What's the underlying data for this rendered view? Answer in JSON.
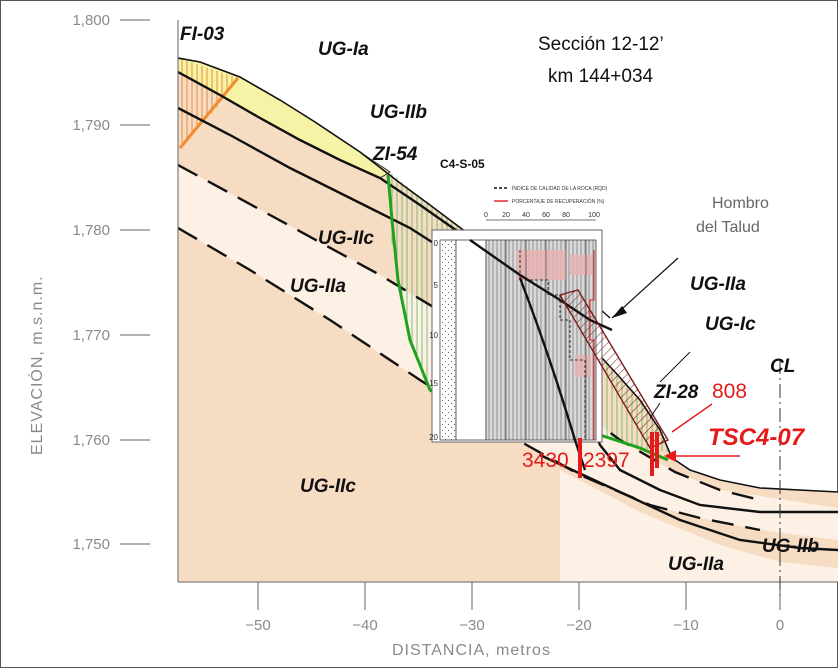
{
  "section": {
    "title": "Sección 12-12’",
    "km": "km 144+034"
  },
  "axes": {
    "ylabel": "ELEVACIÓN, m.s.n.m.",
    "xlabel": "DISTANCIA, metros",
    "yticks": [
      "1,800",
      "1,790",
      "1,780",
      "1,770",
      "1,760",
      "1,750"
    ],
    "xticks": [
      "−50",
      "−40",
      "−30",
      "−20",
      "−10",
      "0"
    ]
  },
  "units": {
    "fi03": "FI-03",
    "ug_ia": "UG-Ia",
    "ug_iib_top": "UG-IIb",
    "zi54": "ZI-54",
    "ug_iic_mid": "UG-IIc",
    "ug_iia_mid": "UG-IIa",
    "ug_iic_low": "UG-IIc",
    "ug_iia_right": "UG-IIa",
    "ug_ic": "UG-Ic",
    "zi28": "ZI-28",
    "ug_iia_bottom": "UG-IIa",
    "ug_iib_bottom": "UG-IIb"
  },
  "annotations": {
    "borehole": "C4-S-05",
    "hombro_line1": "Hombro",
    "hombro_line2": "del  Talud",
    "cl": "CL",
    "tsc": "TSC4-07",
    "v808": "808",
    "v3430": "3430",
    "v2397": "2397"
  },
  "log": {
    "legend_rqd": "ÍNDICE DE CALIDAD DE LA ROCA (RQD)",
    "legend_rec": "PORCENTAJE DE RECUPERACIÓN (%)",
    "scale_top": [
      "0",
      "20",
      "40",
      "60",
      "80",
      "100"
    ],
    "depths": [
      "0",
      "5",
      "10",
      "15",
      "20"
    ]
  },
  "colors": {
    "ground": "#f7dcc4",
    "ground_light": "#fdf0e4",
    "yellow": "#f7f3a6",
    "green_fill": "#b6df9a",
    "green_line": "#1fa31f",
    "orange": "#f28a2e",
    "red": "#e31b1b"
  }
}
